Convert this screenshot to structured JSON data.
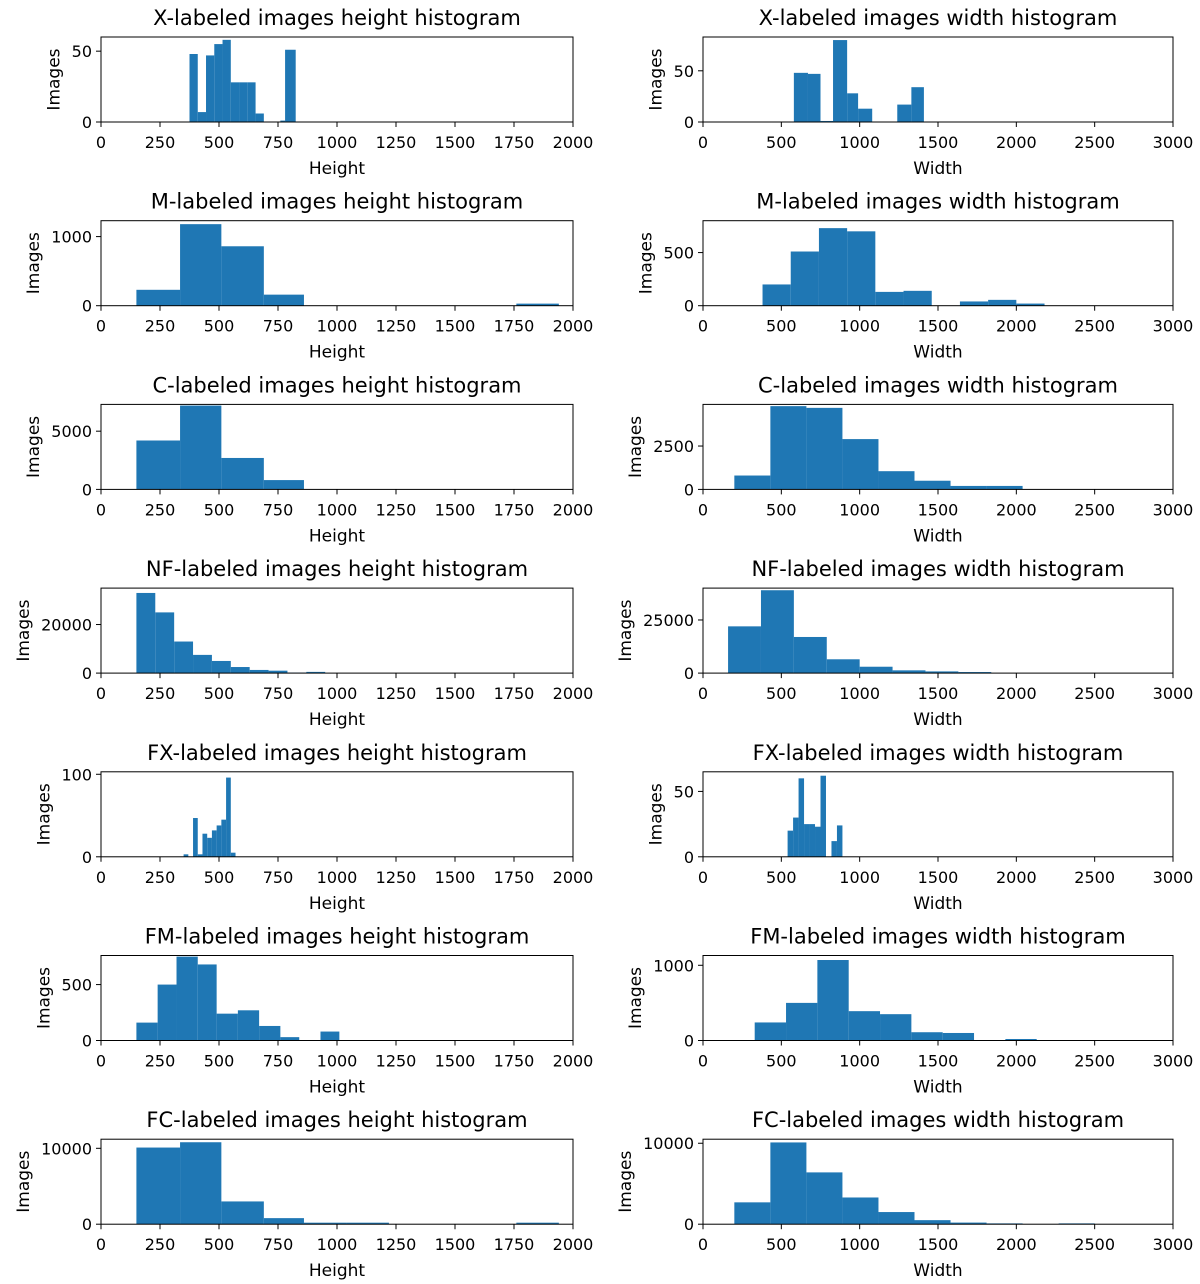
{
  "chart_data": [
    {
      "id": "x-height",
      "type": "bar",
      "title": "X-labeled images height histogram",
      "xlabel": "Height",
      "ylabel": "Images",
      "xlim": [
        0,
        2000
      ],
      "ylim": [
        0,
        60
      ],
      "xticks": [
        0,
        250,
        500,
        750,
        1000,
        1250,
        1500,
        1750,
        2000
      ],
      "yticks": [
        0,
        50
      ],
      "bins": [
        [
          375,
          410,
          48
        ],
        [
          410,
          445,
          7
        ],
        [
          445,
          480,
          47
        ],
        [
          480,
          515,
          55
        ],
        [
          515,
          550,
          58
        ],
        [
          550,
          585,
          28
        ],
        [
          585,
          620,
          28
        ],
        [
          620,
          655,
          28
        ],
        [
          655,
          690,
          6
        ],
        [
          690,
          725,
          0
        ],
        [
          725,
          760,
          0
        ],
        [
          760,
          780,
          1
        ],
        [
          780,
          825,
          51
        ]
      ]
    },
    {
      "id": "x-width",
      "type": "bar",
      "title": "X-labeled images width histogram",
      "xlabel": "Width",
      "ylabel": "Images",
      "xlim": [
        0,
        3000
      ],
      "ylim": [
        0,
        83
      ],
      "xticks": [
        0,
        500,
        1000,
        1500,
        2000,
        2500,
        3000
      ],
      "yticks": [
        0,
        50
      ],
      "bins": [
        [
          580,
          670,
          48
        ],
        [
          670,
          750,
          47
        ],
        [
          750,
          830,
          1
        ],
        [
          830,
          920,
          80
        ],
        [
          920,
          990,
          28
        ],
        [
          990,
          1080,
          13
        ],
        [
          1080,
          1160,
          0
        ],
        [
          1160,
          1240,
          0
        ],
        [
          1240,
          1330,
          17
        ],
        [
          1330,
          1410,
          34
        ]
      ]
    },
    {
      "id": "m-height",
      "type": "bar",
      "title": "M-labeled images height histogram",
      "xlabel": "Height",
      "ylabel": "Images",
      "xlim": [
        0,
        2000
      ],
      "ylim": [
        0,
        1230
      ],
      "xticks": [
        0,
        250,
        500,
        750,
        1000,
        1250,
        1500,
        1750,
        2000
      ],
      "yticks": [
        0,
        1000
      ],
      "bins": [
        [
          150,
          335,
          230
        ],
        [
          335,
          510,
          1180
        ],
        [
          510,
          690,
          860
        ],
        [
          690,
          860,
          160
        ],
        [
          860,
          1040,
          0
        ],
        [
          1040,
          1220,
          0
        ],
        [
          1220,
          1400,
          0
        ],
        [
          1400,
          1580,
          0
        ],
        [
          1580,
          1760,
          0
        ],
        [
          1760,
          1940,
          30
        ]
      ]
    },
    {
      "id": "m-width",
      "type": "bar",
      "title": "M-labeled images width histogram",
      "xlabel": "Width",
      "ylabel": "Images",
      "xlim": [
        0,
        3000
      ],
      "ylim": [
        0,
        800
      ],
      "xticks": [
        0,
        500,
        1000,
        1500,
        2000,
        2500,
        3000
      ],
      "yticks": [
        0,
        500
      ],
      "bins": [
        [
          380,
          560,
          200
        ],
        [
          560,
          740,
          510
        ],
        [
          740,
          920,
          730
        ],
        [
          920,
          1100,
          700
        ],
        [
          1100,
          1280,
          130
        ],
        [
          1280,
          1460,
          140
        ],
        [
          1460,
          1640,
          0
        ],
        [
          1640,
          1820,
          40
        ],
        [
          1820,
          2000,
          55
        ],
        [
          2000,
          2180,
          20
        ]
      ]
    },
    {
      "id": "c-height",
      "type": "bar",
      "title": "C-labeled images height histogram",
      "xlabel": "Height",
      "ylabel": "Images",
      "xlim": [
        0,
        2000
      ],
      "ylim": [
        0,
        7300
      ],
      "xticks": [
        0,
        250,
        500,
        750,
        1000,
        1250,
        1500,
        1750,
        2000
      ],
      "yticks": [
        0,
        5000
      ],
      "bins": [
        [
          150,
          335,
          4200
        ],
        [
          335,
          510,
          7200
        ],
        [
          510,
          690,
          2700
        ],
        [
          690,
          860,
          800
        ]
      ]
    },
    {
      "id": "c-width",
      "type": "bar",
      "title": "C-labeled images width histogram",
      "xlabel": "Width",
      "ylabel": "Images",
      "xlim": [
        0,
        3000
      ],
      "ylim": [
        0,
        4900
      ],
      "xticks": [
        0,
        500,
        1000,
        1500,
        2000,
        2500,
        3000
      ],
      "yticks": [
        0,
        2500
      ],
      "bins": [
        [
          200,
          430,
          800
        ],
        [
          430,
          660,
          4800
        ],
        [
          660,
          890,
          4700
        ],
        [
          890,
          1120,
          2900
        ],
        [
          1120,
          1350,
          1050
        ],
        [
          1350,
          1580,
          500
        ],
        [
          1580,
          1810,
          200
        ],
        [
          1810,
          2040,
          200
        ]
      ]
    },
    {
      "id": "nf-height",
      "type": "bar",
      "title": "NF-labeled images height histogram",
      "xlabel": "Height",
      "ylabel": "Images",
      "xlim": [
        0,
        2000
      ],
      "ylim": [
        0,
        35000
      ],
      "xticks": [
        0,
        250,
        500,
        750,
        1000,
        1250,
        1500,
        1750,
        2000
      ],
      "yticks": [
        0,
        20000
      ],
      "bins": [
        [
          150,
          230,
          33000
        ],
        [
          230,
          310,
          25000
        ],
        [
          310,
          390,
          13000
        ],
        [
          390,
          470,
          7500
        ],
        [
          470,
          550,
          5000
        ],
        [
          550,
          630,
          2500
        ],
        [
          630,
          710,
          1300
        ],
        [
          710,
          790,
          1000
        ],
        [
          790,
          870,
          200
        ],
        [
          870,
          950,
          500
        ],
        [
          950,
          1030,
          0
        ]
      ]
    },
    {
      "id": "nf-width",
      "type": "bar",
      "title": "NF-labeled images width histogram",
      "xlabel": "Width",
      "ylabel": "Images",
      "xlim": [
        0,
        3000
      ],
      "ylim": [
        0,
        40000
      ],
      "xticks": [
        0,
        500,
        1000,
        1500,
        2000,
        2500,
        3000
      ],
      "yticks": [
        0,
        25000
      ],
      "bins": [
        [
          160,
          370,
          22000
        ],
        [
          370,
          580,
          39000
        ],
        [
          580,
          790,
          17000
        ],
        [
          790,
          1000,
          6500
        ],
        [
          1000,
          1210,
          3000
        ],
        [
          1210,
          1420,
          1300
        ],
        [
          1420,
          1630,
          800
        ],
        [
          1630,
          1840,
          500
        ]
      ]
    },
    {
      "id": "fx-height",
      "type": "bar",
      "title": "FX-labeled images height histogram",
      "xlabel": "Height",
      "ylabel": "Images",
      "xlim": [
        0,
        2000
      ],
      "ylim": [
        0,
        103
      ],
      "xticks": [
        0,
        250,
        500,
        750,
        1000,
        1250,
        1500,
        1750,
        2000
      ],
      "yticks": [
        0,
        100
      ],
      "bins": [
        [
          350,
          370,
          3
        ],
        [
          370,
          390,
          0
        ],
        [
          390,
          410,
          47
        ],
        [
          410,
          430,
          3
        ],
        [
          430,
          450,
          28
        ],
        [
          450,
          470,
          23
        ],
        [
          470,
          490,
          32
        ],
        [
          490,
          510,
          38
        ],
        [
          510,
          530,
          45
        ],
        [
          530,
          550,
          96
        ],
        [
          550,
          570,
          5
        ]
      ]
    },
    {
      "id": "fx-width",
      "type": "bar",
      "title": "FX-labeled images width histogram",
      "xlabel": "Width",
      "ylabel": "Images",
      "xlim": [
        0,
        3000
      ],
      "ylim": [
        0,
        65
      ],
      "xticks": [
        0,
        500,
        1000,
        1500,
        2000,
        2500,
        3000
      ],
      "yticks": [
        0,
        50
      ],
      "bins": [
        [
          540,
          575,
          20
        ],
        [
          575,
          610,
          30
        ],
        [
          610,
          645,
          60
        ],
        [
          645,
          680,
          25
        ],
        [
          680,
          715,
          25
        ],
        [
          715,
          750,
          23
        ],
        [
          750,
          785,
          62
        ],
        [
          785,
          820,
          0
        ],
        [
          820,
          855,
          12
        ],
        [
          855,
          890,
          24
        ]
      ]
    },
    {
      "id": "fm-height",
      "type": "bar",
      "title": "FM-labeled images height histogram",
      "xlabel": "Height",
      "ylabel": "Images",
      "xlim": [
        0,
        2000
      ],
      "ylim": [
        0,
        760
      ],
      "xticks": [
        0,
        250,
        500,
        750,
        1000,
        1250,
        1500,
        1750,
        2000
      ],
      "yticks": [
        0,
        500
      ],
      "bins": [
        [
          150,
          240,
          160
        ],
        [
          240,
          320,
          500
        ],
        [
          320,
          410,
          750
        ],
        [
          410,
          490,
          680
        ],
        [
          490,
          580,
          240
        ],
        [
          580,
          670,
          270
        ],
        [
          670,
          760,
          130
        ],
        [
          760,
          840,
          30
        ],
        [
          840,
          930,
          0
        ],
        [
          930,
          1010,
          80
        ]
      ]
    },
    {
      "id": "fm-width",
      "type": "bar",
      "title": "FM-labeled images width histogram",
      "xlabel": "Width",
      "ylabel": "Images",
      "xlim": [
        0,
        3000
      ],
      "ylim": [
        0,
        1130
      ],
      "xticks": [
        0,
        500,
        1000,
        1500,
        2000,
        2500,
        3000
      ],
      "yticks": [
        0,
        1000
      ],
      "bins": [
        [
          330,
          530,
          240
        ],
        [
          530,
          730,
          500
        ],
        [
          730,
          930,
          1070
        ],
        [
          930,
          1130,
          390
        ],
        [
          1130,
          1330,
          350
        ],
        [
          1330,
          1530,
          110
        ],
        [
          1530,
          1730,
          100
        ],
        [
          1730,
          1930,
          0
        ],
        [
          1930,
          2130,
          20
        ]
      ]
    },
    {
      "id": "fc-height",
      "type": "bar",
      "title": "FC-labeled images height histogram",
      "xlabel": "Height",
      "ylabel": "Images",
      "xlim": [
        0,
        2000
      ],
      "ylim": [
        0,
        11200
      ],
      "xticks": [
        0,
        250,
        500,
        750,
        1000,
        1250,
        1500,
        1750,
        2000
      ],
      "yticks": [
        0,
        10000
      ],
      "bins": [
        [
          150,
          335,
          10100
        ],
        [
          335,
          510,
          10800
        ],
        [
          510,
          690,
          3000
        ],
        [
          690,
          860,
          800
        ],
        [
          860,
          1040,
          200
        ],
        [
          1040,
          1220,
          200
        ],
        [
          1220,
          1400,
          0
        ],
        [
          1400,
          1580,
          0
        ],
        [
          1580,
          1760,
          0
        ],
        [
          1760,
          1940,
          200
        ]
      ]
    },
    {
      "id": "fc-width",
      "type": "bar",
      "title": "FC-labeled images width histogram",
      "xlabel": "Width",
      "ylabel": "Images",
      "xlim": [
        0,
        3000
      ],
      "ylim": [
        0,
        10500
      ],
      "xticks": [
        0,
        500,
        1000,
        1500,
        2000,
        2500,
        3000
      ],
      "yticks": [
        0,
        10000
      ],
      "bins": [
        [
          200,
          430,
          2700
        ],
        [
          430,
          660,
          10100
        ],
        [
          660,
          890,
          6400
        ],
        [
          890,
          1120,
          3300
        ],
        [
          1120,
          1350,
          1500
        ],
        [
          1350,
          1580,
          500
        ],
        [
          1580,
          1810,
          200
        ],
        [
          1810,
          2040,
          100
        ],
        [
          2040,
          2270,
          0
        ],
        [
          2270,
          2500,
          100
        ]
      ]
    }
  ],
  "colors": {
    "bar": "#1f77b4",
    "axis": "#000000",
    "background": "#ffffff"
  }
}
